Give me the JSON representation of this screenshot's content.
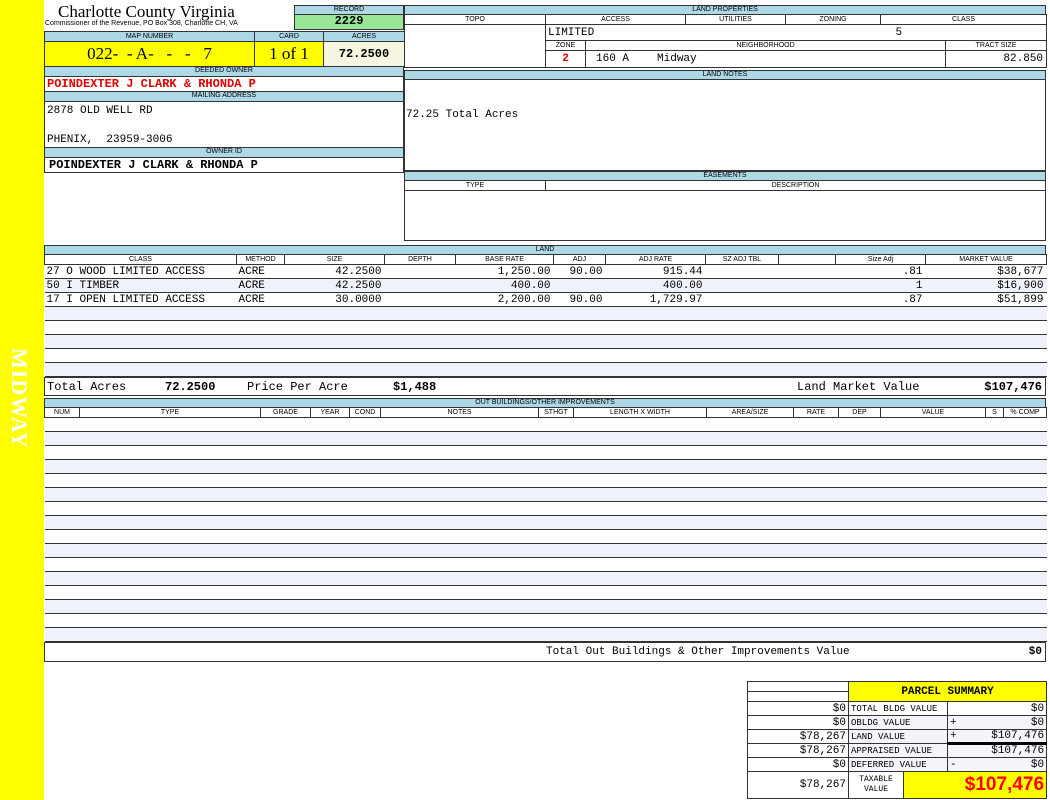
{
  "sidebar": {
    "label": "MIDWAY",
    "color": "#ffff00"
  },
  "header": {
    "title": "Charlotte County Virginia",
    "subtitle": "Commissioner of the Revenue, PO Box 308, Charlotte CH, VA"
  },
  "record": {
    "label": "RECORD",
    "value": "2229"
  },
  "map": {
    "label": "MAP NUMBER",
    "value": "022-  - A-   -   -   7",
    "card_label": "CARD",
    "card": "1 of 1",
    "acres_label": "ACRES",
    "acres": "72.2500"
  },
  "owner": {
    "deeded_label": "DEEDED OWNER",
    "deeded": "POINDEXTER J CLARK & RHONDA P",
    "mailing_label": "MAILING ADDRESS",
    "address1": "2878 OLD WELL RD",
    "address2": "PHENIX,  23959-3006",
    "id_label": "OWNER ID",
    "id": "POINDEXTER J CLARK & RHONDA P"
  },
  "land_properties": {
    "label": "LAND PROPERTIES",
    "cols": [
      "TOPO",
      "ACCESS",
      "UTILITIES",
      "ZONING",
      "CLASS"
    ],
    "topo": "",
    "access": "LIMITED",
    "utilities": "",
    "zoning": "",
    "class": "5",
    "zone_label": "ZONE",
    "neighborhood_label": "NEIGHBORHOOD",
    "tract_label": "TRACT SIZE",
    "zone": "2",
    "neighborhood_code": "160 A",
    "neighborhood": "Midway",
    "tract_size": "82.850"
  },
  "land_notes": {
    "label": "LAND NOTES",
    "text": "72.25 Total Acres"
  },
  "easements": {
    "label": "EASEMENTS",
    "cols": [
      "TYPE",
      "DESCRIPTION"
    ]
  },
  "land": {
    "label": "LAND",
    "cols": [
      "CLASS",
      "METHOD",
      "SIZE",
      "DEPTH",
      "BASE RATE",
      "ADJ",
      "ADJ RATE",
      "SZ ADJ TBL",
      "",
      "Size Adj",
      "MARKET VALUE"
    ],
    "rows": [
      [
        "27 O WOOD LIMITED ACCESS",
        "ACRE",
        "42.2500",
        "",
        "1,250.00",
        "90.00",
        "915.44",
        "",
        "",
        ".81",
        "$38,677"
      ],
      [
        "50 I TIMBER",
        "ACRE",
        "42.2500",
        "",
        "400.00",
        "",
        "400.00",
        "",
        "",
        "1",
        "$16,900"
      ],
      [
        "17 I OPEN LIMITED ACCESS",
        "ACRE",
        "30.0000",
        "",
        "2,200.00",
        "90.00",
        "1,729.97",
        "",
        "",
        ".87",
        "$51,899"
      ]
    ],
    "total_acres_label": "Total Acres",
    "total_acres": "72.2500",
    "ppa_label": "Price Per Acre",
    "ppa": "$1,488",
    "lmv_label": "Land Market Value",
    "lmv": "$107,476"
  },
  "outbuildings": {
    "label": "OUT BUILDINGS/OTHER IMPROVEMENTS",
    "cols": [
      "NUM",
      "TYPE",
      "GRADE",
      "YEAR",
      "COND",
      "NOTES",
      "STHGT",
      "LENGTH X WIDTH",
      "AREA/SIZE",
      "RATE",
      "DEP",
      "VALUE",
      "S",
      "% COMP"
    ],
    "total_label": "Total Out Buildings & Other Improvements Value",
    "total": "$0"
  },
  "summary": {
    "title": "PARCEL SUMMARY",
    "rows": [
      {
        "left": "$0",
        "label": "TOTAL BLDG VALUE",
        "op": "",
        "value": "$0"
      },
      {
        "left": "$0",
        "label": "OBLDG VALUE",
        "op": "+",
        "value": "$0"
      },
      {
        "left": "$78,267",
        "label": "LAND VALUE",
        "op": "+",
        "value": "$107,476"
      },
      {
        "left": "$78,267",
        "label": "APPRAISED VALUE",
        "op": "",
        "value": "$107,476"
      },
      {
        "left": "$0",
        "label": "DEFERRED VALUE",
        "op": "-",
        "value": "$0"
      }
    ],
    "taxable_left": "$78,267",
    "taxable_label": "TAXABLE VALUE",
    "taxable": "$107,476",
    "taxable_color": "#ff0000"
  },
  "colors": {
    "header": "#add8e6",
    "record": "#99e699",
    "highlight": "#ffff00",
    "owner": "#e00000"
  }
}
